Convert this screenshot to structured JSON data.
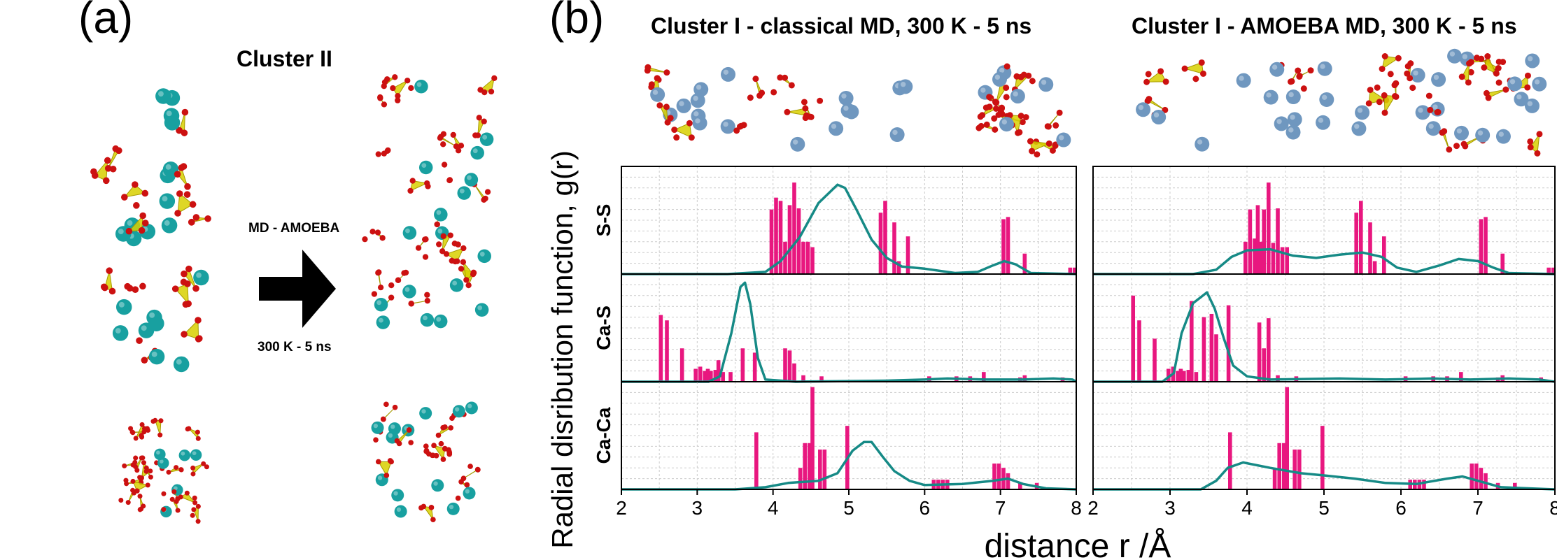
{
  "panel_a": {
    "letter": "(a)",
    "cluster_label": "Cluster II",
    "method_label": "MD - AMOEBA",
    "condition_label": "300 K - 5 ns"
  },
  "panel_b": {
    "letter": "(b)"
  },
  "colors": {
    "bar": "#e8177f",
    "line": "#168a86",
    "grid": "#cccccc",
    "sulfur": "#d8d000",
    "oxygen": "#cc1111",
    "calcium_a": "#18a0a0",
    "calcium_b": "#6f97bf"
  },
  "chart_data": [
    {
      "type": "bar",
      "title": "Cluster I - classical MD, 300 K - 5 ns",
      "xlabel": "distance r /Å",
      "ylabel": "Radial disribution function, g(r)",
      "xlim": [
        2,
        8
      ],
      "xticks": [
        2,
        3,
        4,
        5,
        6,
        7,
        8
      ],
      "grid": true,
      "rows": [
        {
          "name": "S-S",
          "bars": [
            [
              3.98,
              0.6
            ],
            [
              4.04,
              0.71
            ],
            [
              4.1,
              0.68
            ],
            [
              4.16,
              0.3
            ],
            [
              4.22,
              0.64
            ],
            [
              4.28,
              0.85
            ],
            [
              4.34,
              0.61
            ],
            [
              4.4,
              0.3
            ],
            [
              4.46,
              0.3
            ],
            [
              4.52,
              0.25
            ],
            [
              5.42,
              0.57
            ],
            [
              5.48,
              0.68
            ],
            [
              5.6,
              0.48
            ],
            [
              5.66,
              0.12
            ],
            [
              5.78,
              0.35
            ],
            [
              7.04,
              0.51
            ],
            [
              7.1,
              0.53
            ],
            [
              7.32,
              0.19
            ],
            [
              7.92,
              0.06
            ],
            [
              7.98,
              0.06
            ]
          ],
          "curve": [
            [
              2.0,
              0
            ],
            [
              3.4,
              0
            ],
            [
              3.9,
              0.02
            ],
            [
              4.1,
              0.12
            ],
            [
              4.35,
              0.34
            ],
            [
              4.6,
              0.66
            ],
            [
              4.85,
              0.83
            ],
            [
              4.95,
              0.8
            ],
            [
              5.1,
              0.6
            ],
            [
              5.3,
              0.32
            ],
            [
              5.5,
              0.15
            ],
            [
              5.7,
              0.07
            ],
            [
              6.0,
              0.05
            ],
            [
              6.4,
              0.01
            ],
            [
              6.7,
              0.02
            ],
            [
              6.9,
              0.08
            ],
            [
              7.05,
              0.12
            ],
            [
              7.2,
              0.09
            ],
            [
              7.4,
              0.01
            ],
            [
              8.0,
              0
            ]
          ]
        },
        {
          "name": "Ca-S",
          "bars": [
            [
              2.52,
              0.62
            ],
            [
              2.6,
              0.57
            ],
            [
              2.8,
              0.31
            ],
            [
              2.98,
              0.12
            ],
            [
              3.04,
              0.14
            ],
            [
              3.1,
              0.1
            ],
            [
              3.14,
              0.12
            ],
            [
              3.18,
              0.1
            ],
            [
              3.24,
              0.11
            ],
            [
              3.28,
              0.2
            ],
            [
              3.34,
              0.09
            ],
            [
              3.44,
              0.09
            ],
            [
              3.6,
              0.31
            ],
            [
              3.76,
              0.27
            ],
            [
              4.16,
              0.31
            ],
            [
              4.22,
              0.29
            ],
            [
              4.28,
              0.17
            ],
            [
              4.4,
              0.06
            ],
            [
              4.64,
              0.05
            ],
            [
              6.06,
              0.05
            ],
            [
              6.42,
              0.05
            ],
            [
              6.6,
              0.05
            ],
            [
              6.78,
              0.09
            ],
            [
              7.26,
              0.04
            ],
            [
              7.32,
              0.06
            ],
            [
              7.82,
              0.04
            ]
          ],
          "curve": [
            [
              2.0,
              0
            ],
            [
              3.15,
              0
            ],
            [
              3.3,
              0.05
            ],
            [
              3.45,
              0.45
            ],
            [
              3.57,
              0.88
            ],
            [
              3.63,
              0.92
            ],
            [
              3.7,
              0.72
            ],
            [
              3.8,
              0.22
            ],
            [
              3.9,
              0.02
            ],
            [
              4.3,
              0
            ],
            [
              5.5,
              0.01
            ],
            [
              6.0,
              0.02
            ],
            [
              6.3,
              0.03
            ],
            [
              6.8,
              0.02
            ],
            [
              7.3,
              0.02
            ],
            [
              7.7,
              0.03
            ],
            [
              7.95,
              0.02
            ],
            [
              8.0,
              0
            ]
          ]
        },
        {
          "name": "Ca-Ca",
          "bars": [
            [
              3.78,
              0.53
            ],
            [
              4.36,
              0.2
            ],
            [
              4.42,
              0.43
            ],
            [
              4.48,
              0.43
            ],
            [
              4.52,
              0.95
            ],
            [
              4.62,
              0.37
            ],
            [
              4.68,
              0.37
            ],
            [
              4.98,
              0.59
            ],
            [
              6.12,
              0.09
            ],
            [
              6.18,
              0.09
            ],
            [
              6.24,
              0.09
            ],
            [
              6.3,
              0.09
            ],
            [
              6.92,
              0.24
            ],
            [
              6.98,
              0.24
            ],
            [
              7.04,
              0.2
            ],
            [
              7.1,
              0.15
            ],
            [
              7.26,
              0.06
            ],
            [
              7.48,
              0.06
            ]
          ],
          "curve": [
            [
              2.0,
              0
            ],
            [
              3.5,
              0
            ],
            [
              3.9,
              0.02
            ],
            [
              4.2,
              0.06
            ],
            [
              4.6,
              0.08
            ],
            [
              4.85,
              0.15
            ],
            [
              5.05,
              0.36
            ],
            [
              5.2,
              0.44
            ],
            [
              5.3,
              0.44
            ],
            [
              5.45,
              0.3
            ],
            [
              5.6,
              0.17
            ],
            [
              5.8,
              0.08
            ],
            [
              6.0,
              0.04
            ],
            [
              6.5,
              0.05
            ],
            [
              6.9,
              0.08
            ],
            [
              7.1,
              0.1
            ],
            [
              7.3,
              0.05
            ],
            [
              7.6,
              0.01
            ],
            [
              8.0,
              0
            ]
          ]
        }
      ]
    },
    {
      "type": "bar",
      "title": "Cluster I - AMOEBA MD, 300 K - 5 ns",
      "xlabel": "distance r /Å",
      "xlim": [
        2,
        8
      ],
      "xticks": [
        2,
        3,
        4,
        5,
        6,
        7,
        8
      ],
      "grid": true,
      "rows": [
        {
          "name": "S-S",
          "bars": [
            [
              3.98,
              0.3
            ],
            [
              4.04,
              0.6
            ],
            [
              4.1,
              0.33
            ],
            [
              4.14,
              0.64
            ],
            [
              4.18,
              0.3
            ],
            [
              4.22,
              0.6
            ],
            [
              4.28,
              0.85
            ],
            [
              4.34,
              0.29
            ],
            [
              4.4,
              0.61
            ],
            [
              4.46,
              0.25
            ],
            [
              4.52,
              0.25
            ],
            [
              5.42,
              0.57
            ],
            [
              5.48,
              0.68
            ],
            [
              5.6,
              0.48
            ],
            [
              5.66,
              0.12
            ],
            [
              5.78,
              0.35
            ],
            [
              7.04,
              0.51
            ],
            [
              7.1,
              0.53
            ],
            [
              7.32,
              0.19
            ],
            [
              7.92,
              0.06
            ],
            [
              7.98,
              0.06
            ]
          ],
          "curve": [
            [
              2.0,
              0
            ],
            [
              3.3,
              0
            ],
            [
              3.6,
              0.04
            ],
            [
              3.8,
              0.16
            ],
            [
              4.0,
              0.22
            ],
            [
              4.3,
              0.23
            ],
            [
              4.6,
              0.17
            ],
            [
              4.9,
              0.15
            ],
            [
              5.2,
              0.18
            ],
            [
              5.5,
              0.2
            ],
            [
              5.75,
              0.16
            ],
            [
              5.95,
              0.06
            ],
            [
              6.2,
              0.02
            ],
            [
              6.5,
              0.08
            ],
            [
              6.75,
              0.14
            ],
            [
              7.0,
              0.12
            ],
            [
              7.2,
              0.06
            ],
            [
              7.4,
              0.01
            ],
            [
              8.0,
              0
            ]
          ]
        },
        {
          "name": "Ca-S",
          "bars": [
            [
              2.52,
              0.8
            ],
            [
              2.6,
              0.57
            ],
            [
              2.8,
              0.4
            ],
            [
              2.98,
              0.12
            ],
            [
              3.04,
              0.14
            ],
            [
              3.1,
              0.1
            ],
            [
              3.14,
              0.12
            ],
            [
              3.18,
              0.1
            ],
            [
              3.24,
              0.11
            ],
            [
              3.28,
              0.75
            ],
            [
              3.34,
              0.09
            ],
            [
              3.44,
              0.6
            ],
            [
              3.54,
              0.63
            ],
            [
              3.6,
              0.44
            ],
            [
              3.76,
              0.71
            ],
            [
              4.16,
              0.55
            ],
            [
              4.22,
              0.31
            ],
            [
              4.28,
              0.59
            ],
            [
              4.4,
              0.06
            ],
            [
              4.64,
              0.05
            ],
            [
              6.06,
              0.05
            ],
            [
              6.42,
              0.05
            ],
            [
              6.6,
              0.05
            ],
            [
              6.78,
              0.09
            ],
            [
              7.26,
              0.04
            ],
            [
              7.32,
              0.06
            ],
            [
              7.82,
              0.04
            ]
          ],
          "curve": [
            [
              2.0,
              0
            ],
            [
              2.9,
              0
            ],
            [
              3.05,
              0.08
            ],
            [
              3.15,
              0.45
            ],
            [
              3.3,
              0.73
            ],
            [
              3.48,
              0.83
            ],
            [
              3.58,
              0.68
            ],
            [
              3.7,
              0.4
            ],
            [
              3.82,
              0.15
            ],
            [
              4.0,
              0.05
            ],
            [
              4.3,
              0.02
            ],
            [
              5.2,
              0.03
            ],
            [
              5.8,
              0.02
            ],
            [
              6.4,
              0.03
            ],
            [
              6.9,
              0.02
            ],
            [
              7.4,
              0.03
            ],
            [
              7.8,
              0.02
            ],
            [
              8.0,
              0
            ]
          ]
        },
        {
          "name": "Ca-Ca",
          "bars": [
            [
              3.78,
              0.53
            ],
            [
              4.36,
              0.2
            ],
            [
              4.42,
              0.43
            ],
            [
              4.48,
              0.43
            ],
            [
              4.52,
              0.95
            ],
            [
              4.62,
              0.37
            ],
            [
              4.68,
              0.37
            ],
            [
              4.98,
              0.59
            ],
            [
              6.12,
              0.09
            ],
            [
              6.18,
              0.09
            ],
            [
              6.24,
              0.09
            ],
            [
              6.3,
              0.09
            ],
            [
              6.92,
              0.24
            ],
            [
              6.98,
              0.24
            ],
            [
              7.04,
              0.2
            ],
            [
              7.1,
              0.15
            ],
            [
              7.26,
              0.06
            ],
            [
              7.48,
              0.06
            ]
          ],
          "curve": [
            [
              2.0,
              0
            ],
            [
              3.4,
              0
            ],
            [
              3.6,
              0.08
            ],
            [
              3.75,
              0.2
            ],
            [
              3.95,
              0.25
            ],
            [
              4.3,
              0.2
            ],
            [
              4.7,
              0.15
            ],
            [
              5.0,
              0.13
            ],
            [
              5.4,
              0.1
            ],
            [
              5.8,
              0.06
            ],
            [
              6.2,
              0.05
            ],
            [
              6.6,
              0.1
            ],
            [
              6.8,
              0.12
            ],
            [
              7.0,
              0.08
            ],
            [
              7.3,
              0.02
            ],
            [
              8.0,
              0
            ]
          ]
        }
      ]
    }
  ]
}
